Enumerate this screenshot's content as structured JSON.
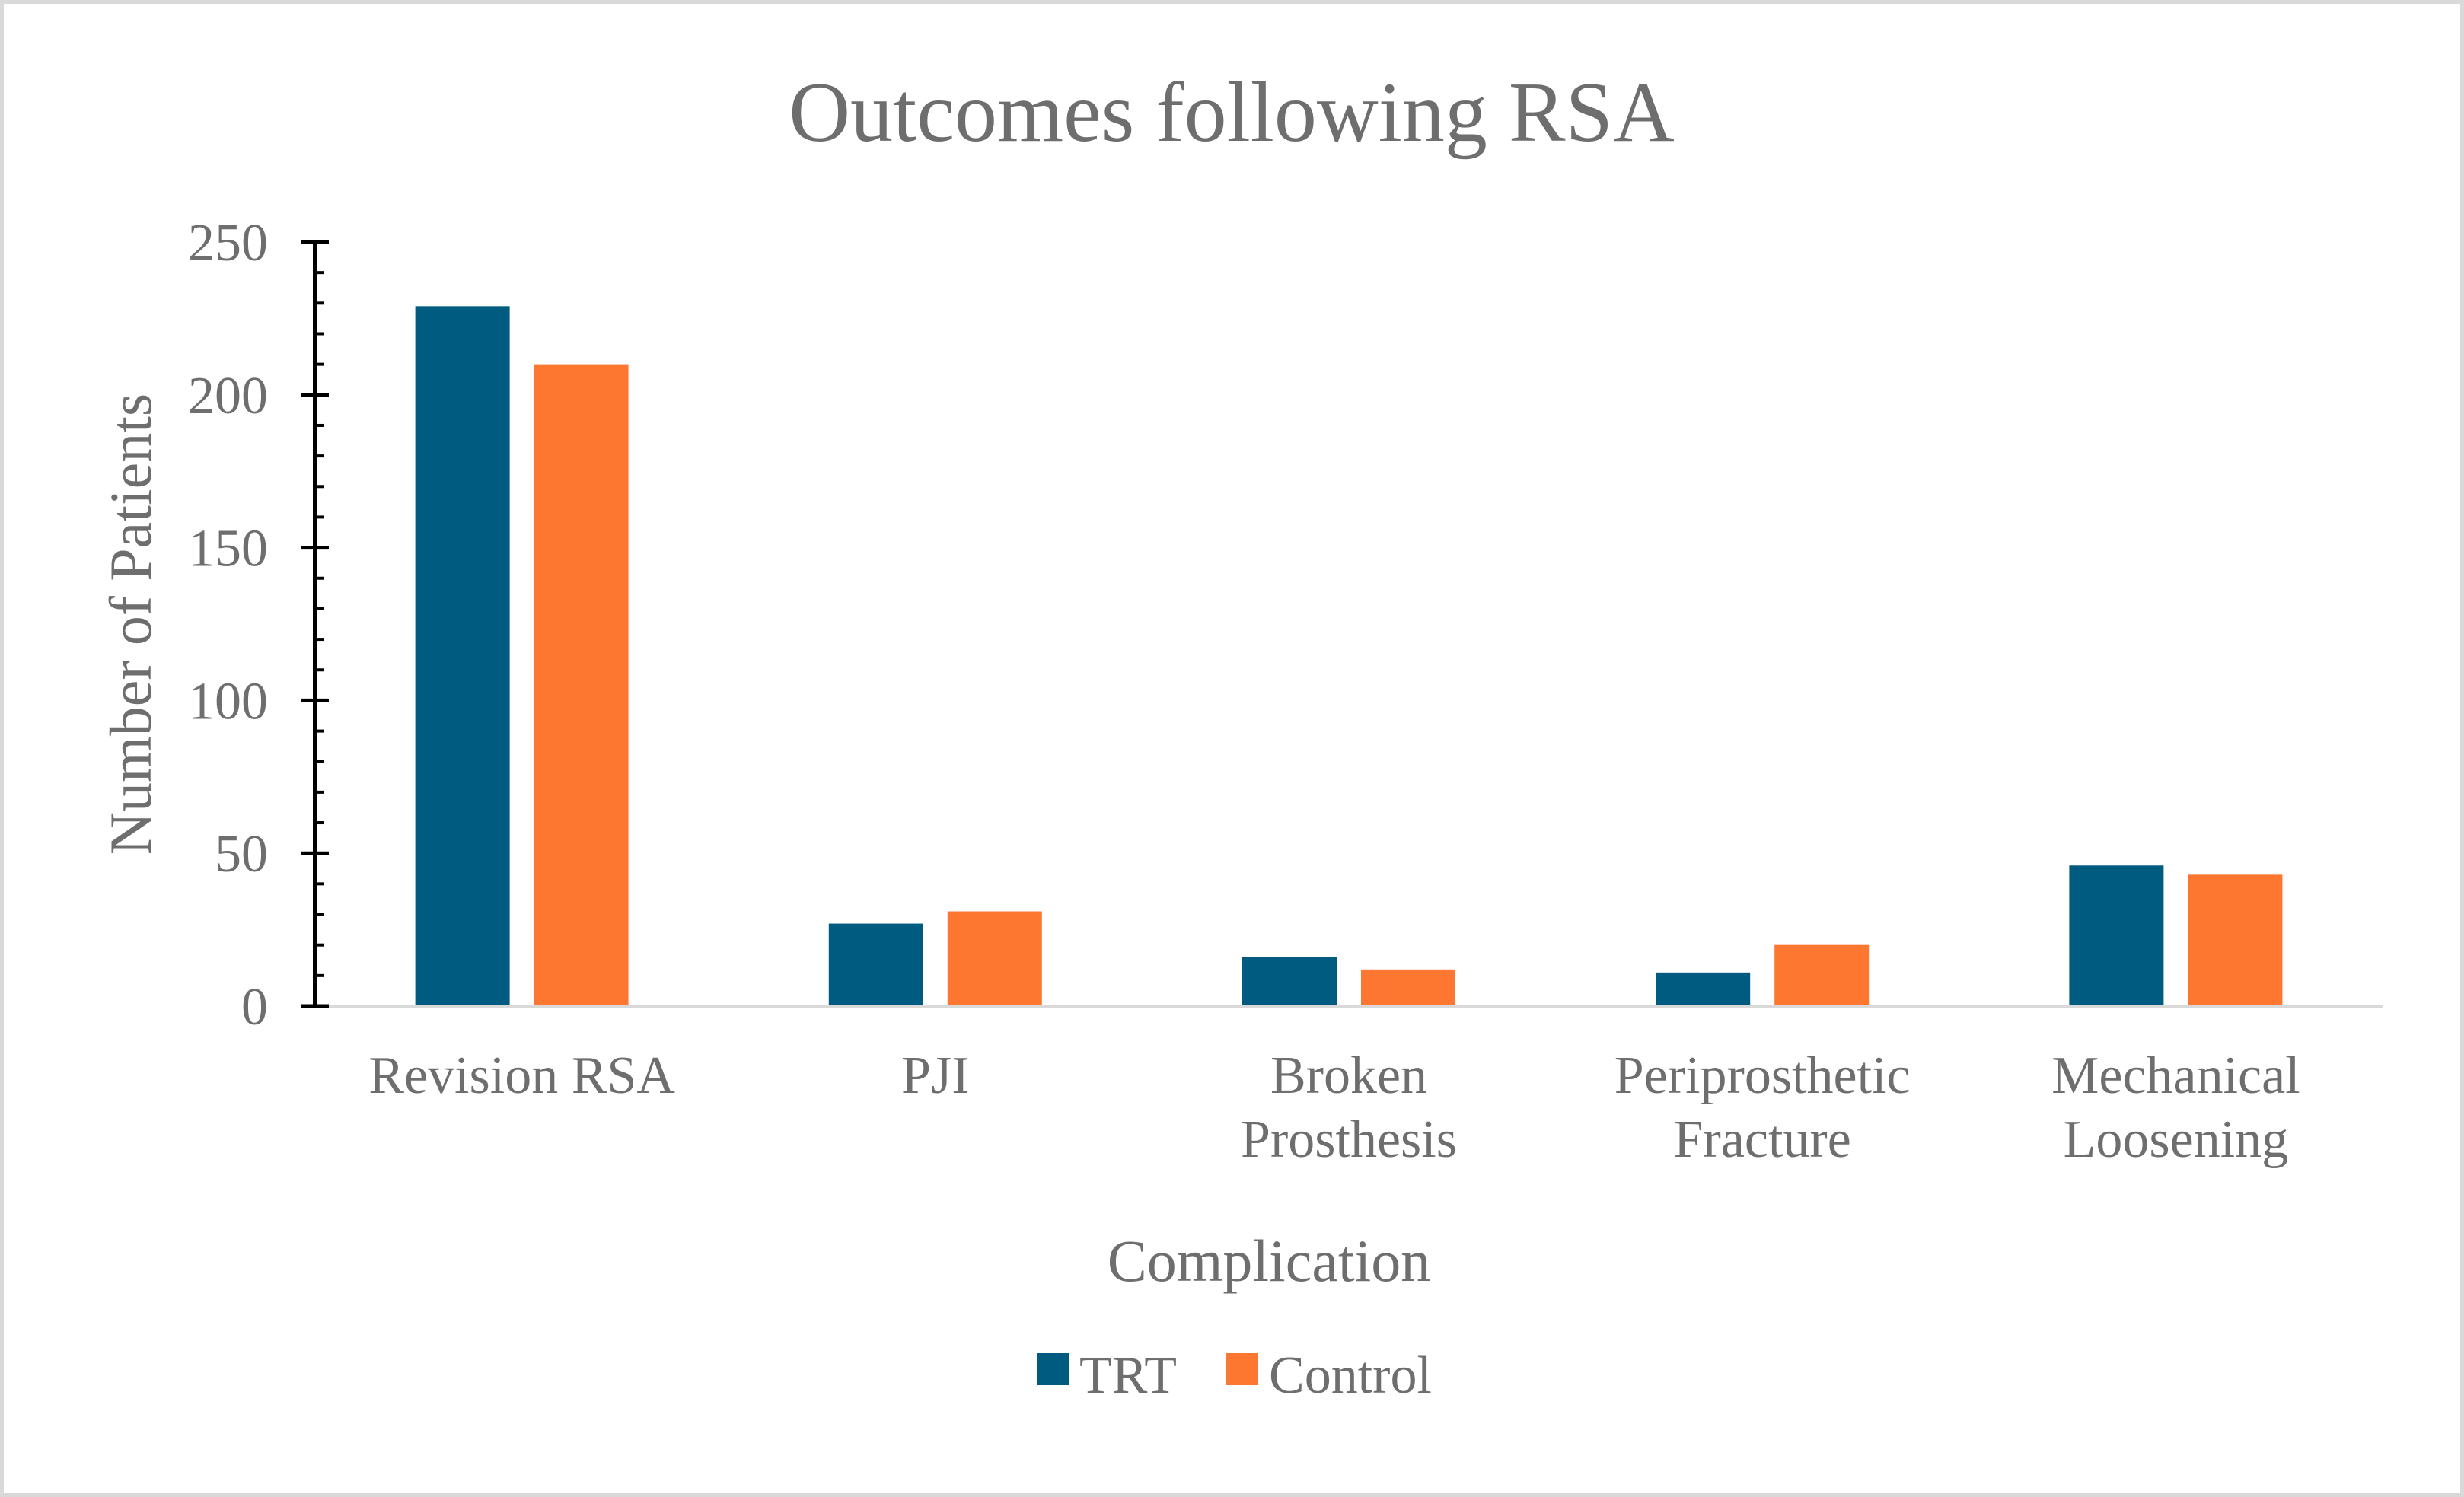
{
  "chart_data": {
    "type": "bar",
    "title": "Outcomes following RSA",
    "xlabel": "Complication",
    "ylabel": "Number of Patients",
    "ylim": [
      0,
      250
    ],
    "yticks": [
      "0",
      "50",
      "100",
      "150",
      "200",
      "250"
    ],
    "ytick_values": [
      0,
      50,
      100,
      150,
      200,
      250
    ],
    "categories": [
      [
        "Revision RSA"
      ],
      [
        "PJI"
      ],
      [
        "Broken",
        "Prosthesis"
      ],
      [
        "Periprosthetic",
        "Fracture"
      ],
      [
        "Mechanical",
        "Loosening"
      ]
    ],
    "series": [
      {
        "name": "TRT",
        "color": "#005b80",
        "values": [
          229,
          27,
          16,
          11,
          46
        ]
      },
      {
        "name": "Control",
        "color": "#fe7730",
        "values": [
          210,
          31,
          12,
          20,
          43
        ]
      }
    ],
    "legend_position": "bottom",
    "grid": false
  }
}
